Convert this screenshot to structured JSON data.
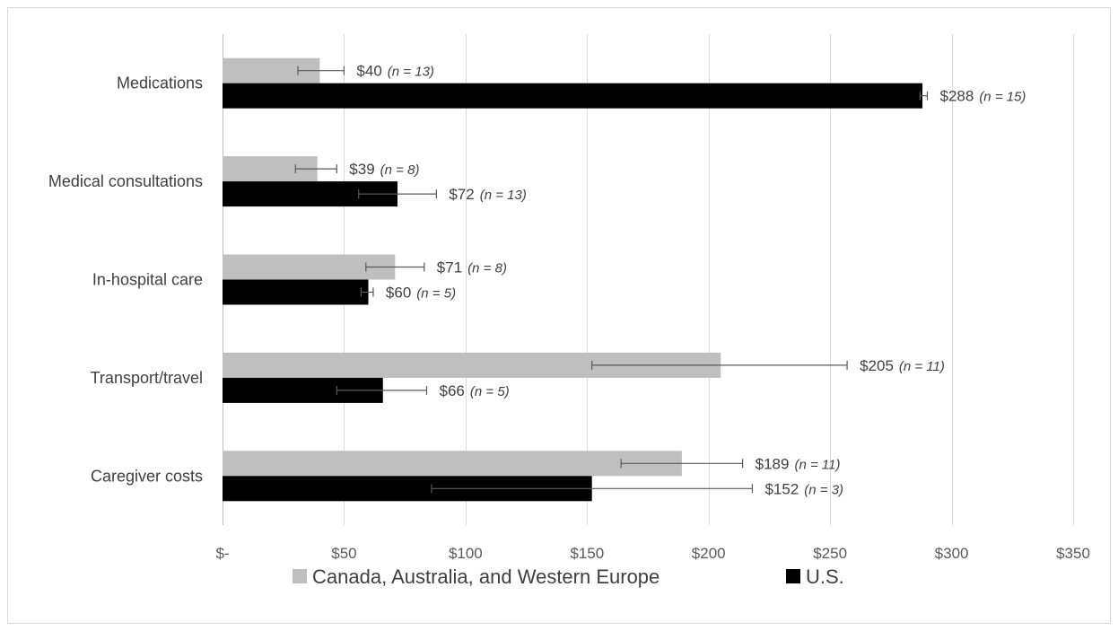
{
  "chart_data": {
    "type": "bar",
    "orientation": "horizontal",
    "categories": [
      "Medications",
      "Medical consultations",
      "In-hospital care",
      "Transport/travel",
      "Caregiver costs"
    ],
    "series": [
      {
        "name": "Canada, Australia, and Western Europe",
        "color": "#bfbfbf",
        "values": [
          40,
          39,
          71,
          205,
          189
        ],
        "error": [
          [
            31,
            50
          ],
          [
            30,
            47
          ],
          [
            59,
            83
          ],
          [
            152,
            257
          ],
          [
            164,
            214
          ]
        ],
        "value_labels": [
          "$40",
          "$39",
          "$71",
          "$205",
          "$189"
        ],
        "n_labels": [
          "(n = 13)",
          "(n = 8)",
          "(n = 8)",
          "(n = 11)",
          "(n = 11)"
        ]
      },
      {
        "name": "U.S.",
        "color": "#000000",
        "values": [
          288,
          72,
          60,
          66,
          152
        ],
        "error": [
          [
            287,
            290
          ],
          [
            56,
            88
          ],
          [
            57,
            62
          ],
          [
            47,
            84
          ],
          [
            86,
            218
          ]
        ],
        "value_labels": [
          "$288",
          "$72",
          "$60",
          "$66",
          "$152"
        ],
        "n_labels": [
          "(n = 15)",
          "(n = 13)",
          "(n = 5)",
          "(n = 5)",
          "(n = 3)"
        ]
      }
    ],
    "xlim": [
      0,
      350
    ],
    "x_ticks": [
      0,
      50,
      100,
      150,
      200,
      250,
      300,
      350
    ],
    "x_tick_labels": [
      "$-",
      "$50",
      "$100",
      "$150",
      "$200",
      "$250",
      "$300",
      "$350"
    ],
    "grid": true,
    "legend_position": "bottom"
  }
}
